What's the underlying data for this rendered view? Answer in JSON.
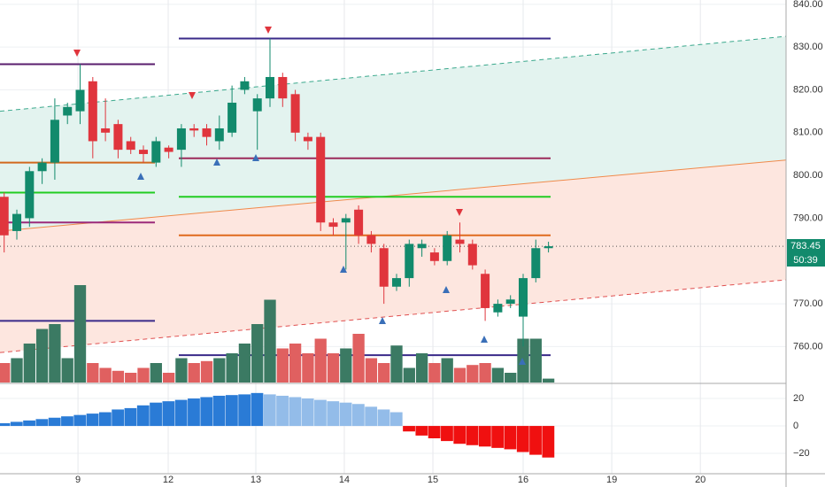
{
  "chart_data": {
    "type": "candlestick",
    "open": [
      795,
      787,
      790,
      801,
      803,
      814,
      815,
      822,
      811,
      812,
      808,
      806,
      803,
      806.5,
      806,
      811,
      811,
      808,
      810,
      820,
      815,
      818,
      823,
      819,
      809,
      809,
      789,
      789,
      792,
      786,
      783,
      774,
      776,
      783,
      782,
      780,
      785,
      784,
      777,
      768,
      770,
      767,
      776,
      783
    ],
    "high": [
      796,
      792,
      802,
      804,
      818,
      817,
      826,
      823,
      818,
      813,
      809,
      807,
      809,
      807,
      812,
      812,
      812,
      814,
      821,
      823,
      819,
      832,
      824,
      820,
      810,
      810,
      790,
      791,
      793,
      787,
      784,
      777,
      785,
      785,
      783,
      787,
      789,
      785,
      778,
      771,
      772,
      777,
      785,
      784.5
    ],
    "low": [
      782,
      785,
      788,
      798,
      799,
      812,
      812,
      804,
      808,
      804,
      805,
      803,
      802,
      804,
      802,
      809,
      807,
      806,
      809,
      819,
      806,
      816,
      816,
      808,
      806,
      787,
      786,
      778,
      784,
      782,
      770,
      773,
      774,
      781,
      779,
      779,
      782,
      778,
      766,
      767,
      769,
      760,
      775,
      782
    ],
    "close": [
      786,
      791,
      801,
      803,
      813,
      816,
      820,
      808,
      810,
      806,
      806,
      805,
      808,
      805.5,
      811,
      810.5,
      809,
      811,
      817,
      822,
      818,
      823,
      818,
      810,
      808,
      789,
      788,
      790,
      786,
      784,
      774,
      776,
      784,
      784,
      780,
      786,
      784,
      779,
      769,
      770,
      771,
      776,
      783,
      783.45
    ],
    "volume": [
      20,
      25,
      40,
      55,
      60,
      25,
      100,
      20,
      15,
      12,
      10,
      15,
      20,
      10,
      25,
      20,
      22,
      25,
      30,
      40,
      60,
      85,
      35,
      40,
      30,
      45,
      30,
      35,
      50,
      25,
      20,
      38,
      15,
      30,
      20,
      25,
      15,
      18,
      20,
      15,
      10,
      45,
      45,
      4
    ],
    "oscillator": [
      2,
      3,
      4,
      5,
      6,
      7,
      8,
      9,
      10,
      12,
      13,
      15,
      17,
      18,
      19,
      20,
      21,
      22,
      22.5,
      23,
      24,
      23,
      22,
      21,
      20,
      19,
      18,
      17,
      16,
      14,
      12,
      10,
      -4,
      -7,
      -9,
      -11,
      -13,
      -14,
      -15,
      -16,
      -17,
      -19,
      -21,
      -23
    ],
    "up_color": "#128a6c",
    "down_color": "#e0353d",
    "vol_up_color": "#3b7a63",
    "vol_down_color": "#e06060",
    "xlim": [
      -0.33,
      61.77
    ],
    "ylim": [
      751.6,
      841
    ],
    "vlim": [
      0,
      100
    ],
    "y2lim": [
      -34.8,
      31
    ],
    "xticks": [
      {
        "value": 5.83,
        "label": "9"
      },
      {
        "value": 12.96,
        "label": "12"
      },
      {
        "value": 19.88,
        "label": "13"
      },
      {
        "value": 26.87,
        "label": "14"
      },
      {
        "value": 33.87,
        "label": "15"
      },
      {
        "value": 41,
        "label": "16"
      },
      {
        "value": 48,
        "label": "19"
      },
      {
        "value": 55,
        "label": "20"
      }
    ],
    "yticks": [
      {
        "value": 760,
        "label": "760.00"
      },
      {
        "value": 770,
        "label": "770.00"
      },
      {
        "value": 790,
        "label": "790.00"
      },
      {
        "value": 800,
        "label": "800.00"
      },
      {
        "value": 810,
        "label": "810.00"
      },
      {
        "value": 820,
        "label": "820.00"
      },
      {
        "value": 830,
        "label": "830.00"
      },
      {
        "value": 840,
        "label": "840.00"
      }
    ],
    "y2ticks": [
      20,
      0,
      {
        "value": -20,
        "label": "−20"
      }
    ],
    "channel": {
      "upper": [
        815,
        832.5
      ],
      "middle": [
        787,
        803.6
      ],
      "lower": [
        758.6,
        775.6
      ]
    },
    "levels_left": [
      {
        "value": 826,
        "color": "#5a1e6e"
      },
      {
        "value": 803,
        "color": "#d2691e"
      },
      {
        "value": 796,
        "color": "#22cc22"
      },
      {
        "value": 789,
        "color": "#9c2a7a"
      },
      {
        "value": 766,
        "color": "#3a2a8a"
      }
    ],
    "levels_right": [
      {
        "value": 832,
        "color": "#3a2a8a"
      },
      {
        "value": 804,
        "color": "#9c2a5a"
      },
      {
        "value": 795,
        "color": "#22cc22"
      },
      {
        "value": 786,
        "color": "#e06a1e"
      },
      {
        "value": 758,
        "color": "#3a2a8a"
      }
    ],
    "last_price": 783.45,
    "last_price_label": "783.45",
    "countdown": "50:39",
    "grid": true
  }
}
